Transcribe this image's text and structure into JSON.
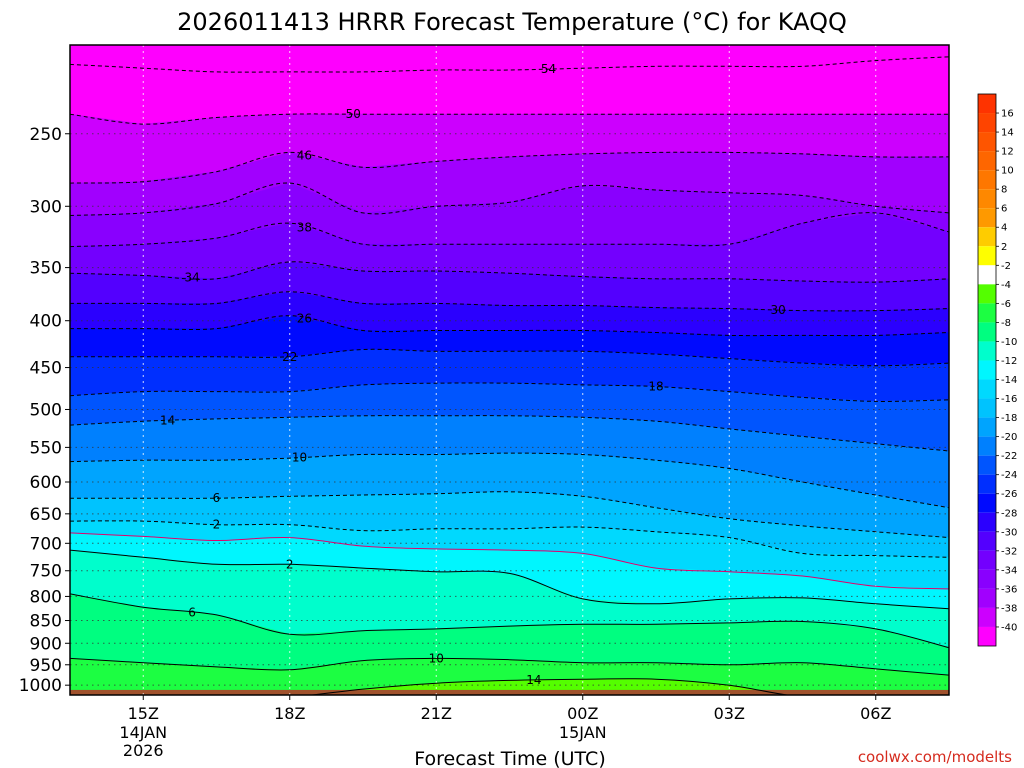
{
  "chart_data": {
    "type": "contour",
    "title": "2026011413 HRRR Forecast Temperature (°C) for KAQQ",
    "xlabel": "Forecast Time (UTC)",
    "ylabel": "",
    "credit": "coolwx.com/modelts",
    "y_axis": {
      "type": "log-pressure",
      "range_hPa": [
        1025,
        200
      ],
      "ticks": [
        "250",
        "300",
        "350",
        "400",
        "450",
        "500",
        "550",
        "600",
        "650",
        "700",
        "750",
        "800",
        "850",
        "900",
        "950",
        "1000"
      ]
    },
    "x_axis": {
      "range_hours": [
        -1.5,
        16.5
      ],
      "ticks": [
        {
          "hour": 0,
          "label": "15Z",
          "sub1": "14JAN",
          "sub2": "2026"
        },
        {
          "hour": 3,
          "label": "18Z",
          "sub1": "",
          "sub2": ""
        },
        {
          "hour": 6,
          "label": "21Z",
          "sub1": "",
          "sub2": ""
        },
        {
          "hour": 9,
          "label": "00Z",
          "sub1": "15JAN",
          "sub2": ""
        },
        {
          "hour": 12,
          "label": "03Z",
          "sub1": "",
          "sub2": ""
        },
        {
          "hour": 15,
          "label": "06Z",
          "sub1": "",
          "sub2": ""
        }
      ]
    },
    "colorbar_labels": [
      "16",
      "14",
      "12",
      "10",
      "8",
      "6",
      "4",
      "2",
      "-2",
      "-4",
      "-6",
      "-8",
      "-10",
      "-12",
      "-14",
      "-16",
      "-18",
      "-20",
      "-22",
      "-24",
      "-26",
      "-28",
      "-30",
      "-32",
      "-34",
      "-36",
      "-38",
      "-40"
    ],
    "colorbar_colors": [
      "#fe4400",
      "#fe5500",
      "#fe6600",
      "#fe7700",
      "#fe8800",
      "#fe9900",
      "#fecc00",
      "#fefe00",
      "#ffffff",
      "#54fe00",
      "#1cfe42",
      "#00fe80",
      "#00fecc",
      "#00f6fe",
      "#00d9fe",
      "#00c3fe",
      "#00a4fe",
      "#0080fe",
      "#0055fe",
      "#002ffe",
      "#000afe",
      "#2b00fe",
      "#5300fe",
      "#7300fe",
      "#8900fe",
      "#a100fe",
      "#cc00fe",
      "#fe00fe"
    ],
    "band_colors": [
      "#fe00fe",
      "#fe00fe",
      "#cc00fe",
      "#a100fe",
      "#8900fe",
      "#7300fe",
      "#5300fe",
      "#2b00fe",
      "#000afe",
      "#002ffe",
      "#0055fe",
      "#0080fe",
      "#00a4fe",
      "#00c3fe",
      "#00d9fe",
      "#00f6fe",
      "#00fecc",
      "#00fe80",
      "#1cfe42",
      "#54fe00",
      "#ffffff",
      "#fefe00",
      "#fecc00",
      "#fe9900",
      "#fe7700",
      "#fe5500"
    ],
    "contour_times": [
      -1.5,
      0,
      1.5,
      3,
      4.5,
      6,
      7.5,
      9,
      10.5,
      12,
      13.5,
      15,
      16.5
    ],
    "contours": [
      {
        "value": -54,
        "label": "54",
        "label_hour": 8.3,
        "pressures": [
          210,
          212,
          214,
          214,
          214,
          213,
          213,
          212,
          211,
          211,
          211,
          208,
          206
        ]
      },
      {
        "value": -50,
        "label": "50",
        "label_hour": 4.3,
        "pressures": [
          238,
          244,
          240,
          238,
          238,
          238,
          238,
          238,
          238,
          238,
          238,
          238,
          238
        ]
      },
      {
        "value": -46,
        "label": "46",
        "label_hour": 3.3,
        "pressures": [
          283,
          282,
          275,
          262,
          272,
          268,
          265,
          263,
          262,
          262,
          263,
          265,
          265
        ]
      },
      {
        "value": -42,
        "label": "",
        "label_hour": 0,
        "pressures": [
          307,
          305,
          298,
          283,
          305,
          300,
          297,
          285,
          288,
          290,
          292,
          300,
          305
        ]
      },
      {
        "value": -38,
        "label": "38",
        "label_hour": 3.3,
        "pressures": [
          332,
          330,
          325,
          313,
          330,
          330,
          330,
          330,
          330,
          330,
          313,
          305,
          320
        ]
      },
      {
        "value": -34,
        "label": "34",
        "label_hour": 1.0,
        "pressures": [
          355,
          357,
          360,
          345,
          353,
          353,
          355,
          358,
          360,
          360,
          362,
          363,
          360
        ]
      },
      {
        "value": -30,
        "label": "30",
        "label_hour": 13.0,
        "pressures": [
          383,
          383,
          383,
          372,
          383,
          383,
          385,
          385,
          387,
          388,
          390,
          390,
          388
        ]
      },
      {
        "value": -26,
        "label": "26",
        "label_hour": 3.3,
        "pressures": [
          408,
          408,
          408,
          395,
          410,
          410,
          410,
          410,
          412,
          415,
          415,
          415,
          412
        ]
      },
      {
        "value": -22,
        "label": "22",
        "label_hour": 3.0,
        "pressures": [
          438,
          438,
          438,
          438,
          430,
          432,
          432,
          432,
          435,
          440,
          445,
          448,
          445
        ]
      },
      {
        "value": -18,
        "label": "18",
        "label_hour": 10.5,
        "pressures": [
          483,
          478,
          478,
          478,
          470,
          468,
          468,
          470,
          472,
          478,
          485,
          490,
          488
        ]
      },
      {
        "value": -14,
        "label": "14",
        "label_hour": 0.5,
        "pressures": [
          520,
          515,
          512,
          510,
          508,
          508,
          508,
          510,
          515,
          525,
          535,
          545,
          555
        ]
      },
      {
        "value": -10,
        "label": "10",
        "label_hour": 3.2,
        "pressures": [
          570,
          568,
          568,
          565,
          560,
          560,
          558,
          560,
          568,
          580,
          600,
          620,
          640
        ]
      },
      {
        "value": -6,
        "label": "6",
        "label_hour": 1.5,
        "pressures": [
          625,
          625,
          625,
          622,
          620,
          618,
          615,
          622,
          640,
          658,
          670,
          680,
          690
        ]
      },
      {
        "value": -2,
        "label": "2",
        "label_hour": 1.5,
        "pressures": [
          662,
          662,
          668,
          668,
          678,
          675,
          675,
          672,
          680,
          690,
          718,
          722,
          725
        ]
      },
      {
        "value": 0,
        "label": "",
        "label_hour": 0,
        "pressures": [
          682,
          688,
          695,
          690,
          705,
          710,
          712,
          718,
          745,
          752,
          760,
          780,
          785
        ]
      },
      {
        "value": 2,
        "label": "2",
        "label_hour": 3.0,
        "pressures": [
          712,
          725,
          738,
          738,
          745,
          752,
          755,
          805,
          815,
          805,
          803,
          815,
          825
        ]
      },
      {
        "value": 6,
        "label": "6",
        "label_hour": 1.0,
        "pressures": [
          795,
          822,
          838,
          880,
          872,
          868,
          862,
          858,
          858,
          855,
          852,
          868,
          910
        ]
      },
      {
        "value": 10,
        "label": "10",
        "label_hour": 6.0,
        "pressures": [
          935,
          945,
          955,
          962,
          940,
          935,
          938,
          945,
          945,
          950,
          945,
          960,
          975
        ]
      },
      {
        "value": 14,
        "label": "14",
        "label_hour": 8.0,
        "pressures": [
          1030,
          1030,
          1030,
          1030,
          1010,
          995,
          988,
          985,
          985,
          1000,
          1030,
          1030,
          1030
        ]
      }
    ],
    "shade_times": [
      -1.5,
      0,
      1.5,
      3,
      4.5,
      6,
      7.5,
      9,
      10.5,
      12,
      13.5,
      15,
      16.5
    ],
    "ground_pressure_hPa": 1012
  }
}
